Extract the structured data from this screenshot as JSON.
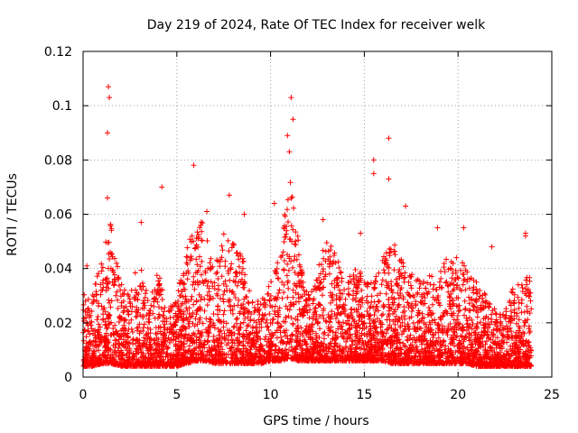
{
  "chart_data": {
    "type": "scatter",
    "title": "Day 219 of 2024, Rate Of TEC Index for receiver welk",
    "xlabel": "GPS time / hours",
    "ylabel": "ROTI / TECUs",
    "xlim": [
      0,
      25
    ],
    "ylim": [
      0,
      0.12
    ],
    "xticks": [
      0,
      5,
      10,
      15,
      20,
      25
    ],
    "xtick_labels": [
      "0",
      "5",
      "10",
      "15",
      "20",
      "25"
    ],
    "yticks": [
      0,
      0.02,
      0.04,
      0.06,
      0.08,
      0.1,
      0.12
    ],
    "ytick_labels": [
      "0",
      "0.02",
      "0.04",
      "0.06",
      "0.08",
      "0.1",
      "0.12"
    ],
    "grid": true,
    "marker": "+",
    "color": "#ff0000",
    "n_points": 5000,
    "envelope": {
      "x": [
        0,
        0.5,
        1.0,
        1.5,
        2.0,
        2.5,
        3.0,
        3.5,
        4.0,
        4.5,
        5.0,
        5.5,
        6.0,
        6.5,
        7.0,
        7.5,
        8.0,
        8.5,
        9.0,
        9.5,
        10.0,
        10.5,
        11.0,
        11.5,
        12.0,
        12.5,
        13.0,
        13.5,
        14.0,
        14.5,
        15.0,
        15.5,
        16.0,
        16.5,
        17.0,
        17.5,
        18.0,
        18.5,
        19.0,
        19.5,
        20.0,
        20.5,
        21.0,
        21.5,
        22.0,
        22.5,
        23.0,
        23.5,
        23.9
      ],
      "upper": [
        0.032,
        0.03,
        0.045,
        0.058,
        0.035,
        0.03,
        0.045,
        0.028,
        0.04,
        0.025,
        0.03,
        0.048,
        0.055,
        0.06,
        0.04,
        0.055,
        0.05,
        0.045,
        0.03,
        0.028,
        0.035,
        0.045,
        0.075,
        0.05,
        0.03,
        0.04,
        0.052,
        0.045,
        0.035,
        0.04,
        0.042,
        0.035,
        0.045,
        0.05,
        0.045,
        0.04,
        0.035,
        0.038,
        0.04,
        0.045,
        0.045,
        0.04,
        0.035,
        0.03,
        0.025,
        0.025,
        0.035,
        0.035,
        0.04
      ],
      "lower": [
        0.004,
        0.004,
        0.005,
        0.005,
        0.004,
        0.004,
        0.004,
        0.004,
        0.004,
        0.004,
        0.004,
        0.005,
        0.006,
        0.006,
        0.005,
        0.005,
        0.005,
        0.005,
        0.005,
        0.005,
        0.006,
        0.006,
        0.007,
        0.006,
        0.006,
        0.006,
        0.006,
        0.006,
        0.006,
        0.006,
        0.006,
        0.006,
        0.006,
        0.005,
        0.005,
        0.005,
        0.005,
        0.005,
        0.005,
        0.005,
        0.005,
        0.005,
        0.004,
        0.004,
        0.004,
        0.004,
        0.004,
        0.004,
        0.004
      ]
    },
    "spikes": [
      {
        "x": 1.35,
        "y": 0.107
      },
      {
        "x": 1.4,
        "y": 0.103
      },
      {
        "x": 1.3,
        "y": 0.09
      },
      {
        "x": 1.3,
        "y": 0.066
      },
      {
        "x": 3.1,
        "y": 0.057
      },
      {
        "x": 4.2,
        "y": 0.07
      },
      {
        "x": 5.9,
        "y": 0.078
      },
      {
        "x": 6.6,
        "y": 0.061
      },
      {
        "x": 7.8,
        "y": 0.067
      },
      {
        "x": 8.6,
        "y": 0.06
      },
      {
        "x": 10.2,
        "y": 0.064
      },
      {
        "x": 10.9,
        "y": 0.089
      },
      {
        "x": 11.1,
        "y": 0.103
      },
      {
        "x": 11.0,
        "y": 0.083
      },
      {
        "x": 11.2,
        "y": 0.095
      },
      {
        "x": 12.8,
        "y": 0.058
      },
      {
        "x": 14.8,
        "y": 0.053
      },
      {
        "x": 15.5,
        "y": 0.08
      },
      {
        "x": 15.5,
        "y": 0.075
      },
      {
        "x": 16.3,
        "y": 0.088
      },
      {
        "x": 16.3,
        "y": 0.073
      },
      {
        "x": 17.2,
        "y": 0.063
      },
      {
        "x": 18.9,
        "y": 0.055
      },
      {
        "x": 20.3,
        "y": 0.055
      },
      {
        "x": 21.8,
        "y": 0.048
      },
      {
        "x": 23.6,
        "y": 0.053
      },
      {
        "x": 23.6,
        "y": 0.052
      },
      {
        "x": 0.2,
        "y": 0.041
      }
    ]
  }
}
